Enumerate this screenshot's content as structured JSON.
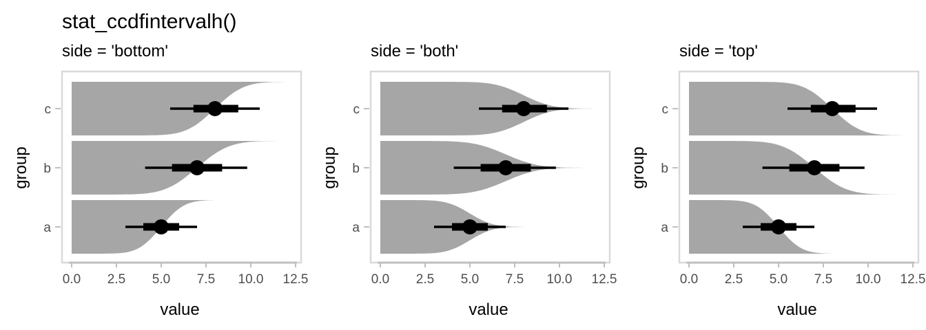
{
  "title": "stat_ccdfintervalh()",
  "chart_data": [
    {
      "type": "ccdf_interval",
      "subtitle": "side = 'bottom'",
      "side": "bottom",
      "xlabel": "value",
      "ylabel": "group",
      "xlim": [
        0,
        12.5
      ],
      "x_ticks": [
        "0.0",
        "2.5",
        "5.0",
        "7.5",
        "10.0",
        "12.5"
      ],
      "categories": [
        "a",
        "b",
        "c"
      ],
      "series": [
        {
          "group": "a",
          "point": 5.0,
          "interval_66": [
            4.0,
            6.0
          ],
          "interval_95": [
            3.0,
            7.0
          ],
          "ccdf_median": 5.0,
          "ccdf_sd": 1.0,
          "tail_end": 8.0
        },
        {
          "group": "b",
          "point": 7.0,
          "interval_66": [
            5.6,
            8.4
          ],
          "interval_95": [
            4.1,
            9.8
          ],
          "ccdf_median": 7.0,
          "ccdf_sd": 1.4,
          "tail_end": 11.8
        },
        {
          "group": "c",
          "point": 8.0,
          "interval_66": [
            6.8,
            9.3
          ],
          "interval_95": [
            5.5,
            10.5
          ],
          "ccdf_median": 8.0,
          "ccdf_sd": 1.25,
          "tail_end": 12.0
        }
      ],
      "fill_color": "#a6a6a6",
      "interval_color": "#000000",
      "grid": false
    },
    {
      "type": "ccdf_interval",
      "subtitle": "side = 'both'",
      "side": "both",
      "xlabel": "value",
      "ylabel": "group",
      "xlim": [
        0,
        12.5
      ],
      "x_ticks": [
        "0.0",
        "2.5",
        "5.0",
        "7.5",
        "10.0",
        "12.5"
      ],
      "categories": [
        "a",
        "b",
        "c"
      ],
      "series": [
        {
          "group": "a",
          "point": 5.0,
          "interval_66": [
            4.0,
            6.0
          ],
          "interval_95": [
            3.0,
            7.0
          ],
          "ccdf_median": 5.0,
          "ccdf_sd": 1.0,
          "tail_end": 8.0
        },
        {
          "group": "b",
          "point": 7.0,
          "interval_66": [
            5.6,
            8.4
          ],
          "interval_95": [
            4.1,
            9.8
          ],
          "ccdf_median": 7.0,
          "ccdf_sd": 1.4,
          "tail_end": 11.8
        },
        {
          "group": "c",
          "point": 8.0,
          "interval_66": [
            6.8,
            9.3
          ],
          "interval_95": [
            5.5,
            10.5
          ],
          "ccdf_median": 8.0,
          "ccdf_sd": 1.25,
          "tail_end": 12.0
        }
      ],
      "fill_color": "#a6a6a6",
      "interval_color": "#000000",
      "grid": false
    },
    {
      "type": "ccdf_interval",
      "subtitle": "side = 'top'",
      "side": "top",
      "xlabel": "value",
      "ylabel": "group",
      "xlim": [
        0,
        12.5
      ],
      "x_ticks": [
        "0.0",
        "2.5",
        "5.0",
        "7.5",
        "10.0",
        "12.5"
      ],
      "categories": [
        "a",
        "b",
        "c"
      ],
      "series": [
        {
          "group": "a",
          "point": 5.0,
          "interval_66": [
            4.0,
            6.0
          ],
          "interval_95": [
            3.0,
            7.0
          ],
          "ccdf_median": 5.0,
          "ccdf_sd": 1.0,
          "tail_end": 8.0
        },
        {
          "group": "b",
          "point": 7.0,
          "interval_66": [
            5.6,
            8.4
          ],
          "interval_95": [
            4.1,
            9.8
          ],
          "ccdf_median": 7.0,
          "ccdf_sd": 1.4,
          "tail_end": 11.8
        },
        {
          "group": "c",
          "point": 8.0,
          "interval_66": [
            6.8,
            9.3
          ],
          "interval_95": [
            5.5,
            10.5
          ],
          "ccdf_median": 8.0,
          "ccdf_sd": 1.25,
          "tail_end": 12.0
        }
      ],
      "fill_color": "#a6a6a6",
      "interval_color": "#000000",
      "grid": false
    }
  ]
}
